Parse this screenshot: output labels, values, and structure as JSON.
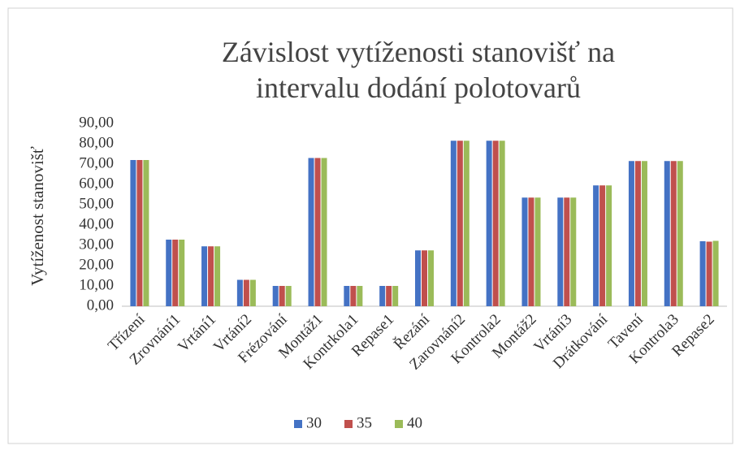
{
  "chart_data": {
    "type": "bar",
    "title": "Závislost vytíženosti stanovišť na intervalu dodání polotovarů",
    "y_label": "Vytíženost stanovišť",
    "categories": [
      "Třízení",
      "Zrovnání1",
      "Vrtání1",
      "Vrtání2",
      "Frézování",
      "Montáž1",
      "Kontrkola1",
      "Repase1",
      "Řezání",
      "Zarovnání2",
      "Kontrola2",
      "Montáž2",
      "Vrtání3",
      "Drátkování",
      "Tavení",
      "Kontrola3",
      "Repase2"
    ],
    "series": [
      {
        "name": "30",
        "color": "#4472c4",
        "values": [
          72,
          32.8,
          29.5,
          13,
          10,
          73,
          10,
          10,
          27.5,
          81.5,
          81.5,
          53.5,
          53.5,
          59.5,
          71.5,
          71.5,
          32
        ]
      },
      {
        "name": "35",
        "color": "#c0504d",
        "values": [
          72,
          32.8,
          29.5,
          13,
          10,
          73,
          10,
          10,
          27.5,
          81.5,
          81.5,
          53.5,
          53.5,
          59.5,
          71.5,
          71.5,
          31.8
        ]
      },
      {
        "name": "40",
        "color": "#9bbb59",
        "values": [
          72,
          32.8,
          29.5,
          13,
          10,
          73,
          10,
          10,
          27.5,
          81.5,
          81.5,
          53.5,
          53.5,
          59.5,
          71.5,
          71.5,
          32.2
        ]
      }
    ],
    "ylim": [
      0,
      90
    ],
    "yticks": [
      {
        "value": 0,
        "label": "0,00"
      },
      {
        "value": 10,
        "label": "10,00"
      },
      {
        "value": 20,
        "label": "20,00"
      },
      {
        "value": 30,
        "label": "30,00"
      },
      {
        "value": 40,
        "label": "40,00"
      },
      {
        "value": 50,
        "label": "50,00"
      },
      {
        "value": 60,
        "label": "60,00"
      },
      {
        "value": 70,
        "label": "70,00"
      },
      {
        "value": 80,
        "label": "80,00"
      },
      {
        "value": 90,
        "label": "90,00"
      }
    ],
    "grid": false,
    "legend": "bottom"
  }
}
